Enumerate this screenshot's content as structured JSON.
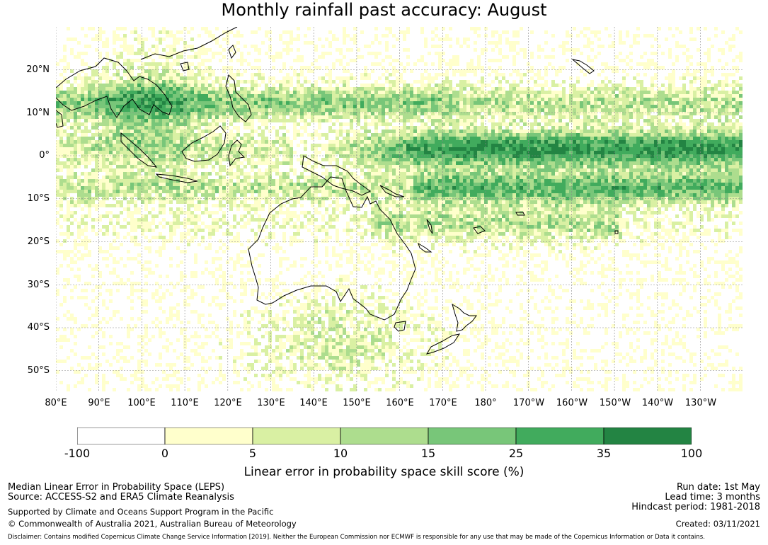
{
  "title": "Monthly rainfall past accuracy: August",
  "map": {
    "lat_labels": [
      "20°N",
      "10°N",
      "0°",
      "10°S",
      "20°S",
      "30°S",
      "40°S",
      "50°S"
    ],
    "lon_labels": [
      "80°E",
      "90°E",
      "100°E",
      "110°E",
      "120°E",
      "130°E",
      "140°E",
      "150°E",
      "160°E",
      "170°E",
      "180°",
      "170°W",
      "160°W",
      "150°W",
      "140°W",
      "130°W"
    ],
    "background_color": "#ffffff",
    "coastline_color": "#000000"
  },
  "colorbar": {
    "tick_labels": [
      "-100",
      "0",
      "5",
      "10",
      "15",
      "25",
      "35",
      "100"
    ],
    "colors": [
      "#ffffff",
      "#ffffcc",
      "#d9f0a3",
      "#addd8e",
      "#78c679",
      "#41ab5d",
      "#238443"
    ],
    "label": "Linear error in probability space skill score (%)"
  },
  "footer": {
    "left_line1": "Median Linear Error in Probability Space (LEPS)",
    "left_line2": "Source: ACCESS-S2 and ERA5 Climate Reanalysis",
    "left_line3": "Supported by Climate and Oceans Support Program in the Pacific",
    "left_line4": "© Commonwealth of Australia 2021, Australian Bureau of Meteorology",
    "right_line1": "Run date: 1st May",
    "right_line2": "Lead time: 3 months",
    "right_line3": "Hindcast period: 1981-2018",
    "right_line4": "Created: 03/11/2021",
    "disclaimer": "Disclaimer: Contains modified Copernicus Climate Change Service Information [2019]. Neither the European Commission nor ECMWF is responsible for any use that may be made of the Copernicus Information or Data it contains."
  }
}
